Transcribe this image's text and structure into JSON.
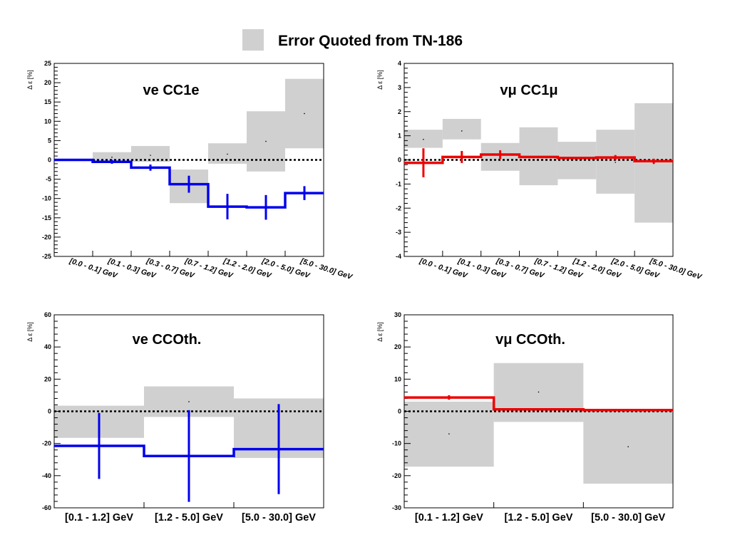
{
  "legend": {
    "label": "Error Quoted from TN-186",
    "swatch_color": "#d0d0d0"
  },
  "colors": {
    "band": "#d0d0d0",
    "nue": "#0000ee",
    "numu": "#ee0000"
  },
  "chart_data": [
    {
      "type": "step",
      "title": "ve CC1e",
      "ylabel": "Δ ε [%]",
      "ylim": [
        -25,
        25
      ],
      "yticks": [
        -25,
        -20,
        -15,
        -10,
        -5,
        0,
        5,
        10,
        15,
        20,
        25
      ],
      "categories": [
        "[0.0 - 0.1] GeV",
        "[0.1 - 0.3] GeV",
        "[0.3 - 0.7] GeV",
        "[0.7 - 1.2] GeV",
        "[1.2 - 2.0] GeV",
        "[2.0 - 5.0] GeV",
        "[5.0 - 30.0] GeV"
      ],
      "category_labels_rotated": true,
      "series": [
        {
          "color": "nue",
          "values": [
            0,
            -0.5,
            -2,
            -6.3,
            -12.1,
            -12.3,
            -8.6
          ],
          "errors": [
            0,
            0.5,
            0.8,
            2.2,
            3.3,
            3.2,
            1.8
          ]
        }
      ],
      "band": {
        "center": [
          0,
          0.7,
          1.2,
          -7,
          1.5,
          4.8,
          12
        ],
        "low": [
          0,
          -0.5,
          -0.5,
          -11.2,
          -1,
          -3,
          3
        ],
        "high": [
          0,
          2,
          3.6,
          -2.5,
          4.3,
          12.6,
          21
        ]
      }
    },
    {
      "type": "step",
      "title": "vμ CC1μ",
      "ylabel": "Δ ε [%]",
      "ylim": [
        -4,
        4
      ],
      "yticks": [
        -4,
        -3,
        -2,
        -1,
        0,
        1,
        2,
        3,
        4
      ],
      "categories": [
        "[0.0 - 0.1] GeV",
        "[0.1 - 0.3] GeV",
        "[0.3 - 0.7] GeV",
        "[0.7 - 1.2] GeV",
        "[1.2 - 2.0] GeV",
        "[2.0 - 5.0] GeV",
        "[5.0 - 30.0] GeV"
      ],
      "category_labels_rotated": true,
      "series": [
        {
          "color": "numu",
          "values": [
            -0.12,
            0.12,
            0.22,
            0.12,
            0.08,
            0.1,
            -0.05
          ],
          "errors": [
            0.6,
            0.25,
            0.18,
            0,
            0,
            0.1,
            0.1
          ]
        }
      ],
      "band": {
        "center": [
          0.85,
          1.2,
          0.1,
          0.15,
          0,
          -0.1,
          -0.15
        ],
        "low": [
          0.5,
          0.85,
          -0.45,
          -1.05,
          -0.8,
          -1.4,
          -2.6
        ],
        "high": [
          1.25,
          1.7,
          0.7,
          1.35,
          0.75,
          1.25,
          2.35
        ]
      }
    },
    {
      "type": "step",
      "title": "ve CCOth.",
      "ylabel": "Δ ε [%]",
      "ylim": [
        -60,
        60
      ],
      "yticks": [
        -60,
        -40,
        -20,
        0,
        20,
        40,
        60
      ],
      "categories": [
        "[0.1 - 1.2] GeV",
        "[1.2 - 5.0] GeV",
        "[5.0 - 30.0] GeV"
      ],
      "category_labels_rotated": false,
      "series": [
        {
          "color": "nue",
          "values": [
            -21.5,
            -27.8,
            -23.5
          ],
          "errors": [
            20.5,
            28.5,
            28
          ]
        }
      ],
      "band": {
        "center": [
          -6.5,
          6,
          -10
        ],
        "low": [
          -16.5,
          -3.5,
          -29
        ],
        "high": [
          3.5,
          15.5,
          8
        ]
      }
    },
    {
      "type": "step",
      "title": "vμ CCOth.",
      "ylabel": "Δ ε [%]",
      "ylim": [
        -30,
        30
      ],
      "yticks": [
        -30,
        -20,
        -10,
        0,
        10,
        20,
        30
      ],
      "categories": [
        "[0.1 - 1.2] GeV",
        "[1.2 - 5.0] GeV",
        "[5.0 - 30.0] GeV"
      ],
      "category_labels_rotated": false,
      "series": [
        {
          "color": "numu",
          "values": [
            4.3,
            0.6,
            0.4
          ],
          "errors": [
            0.7,
            0,
            0
          ]
        }
      ],
      "band": {
        "center": [
          -7,
          6,
          -11
        ],
        "low": [
          -17.2,
          -3.3,
          -22.5
        ],
        "high": [
          3,
          15,
          0.6
        ]
      }
    }
  ]
}
